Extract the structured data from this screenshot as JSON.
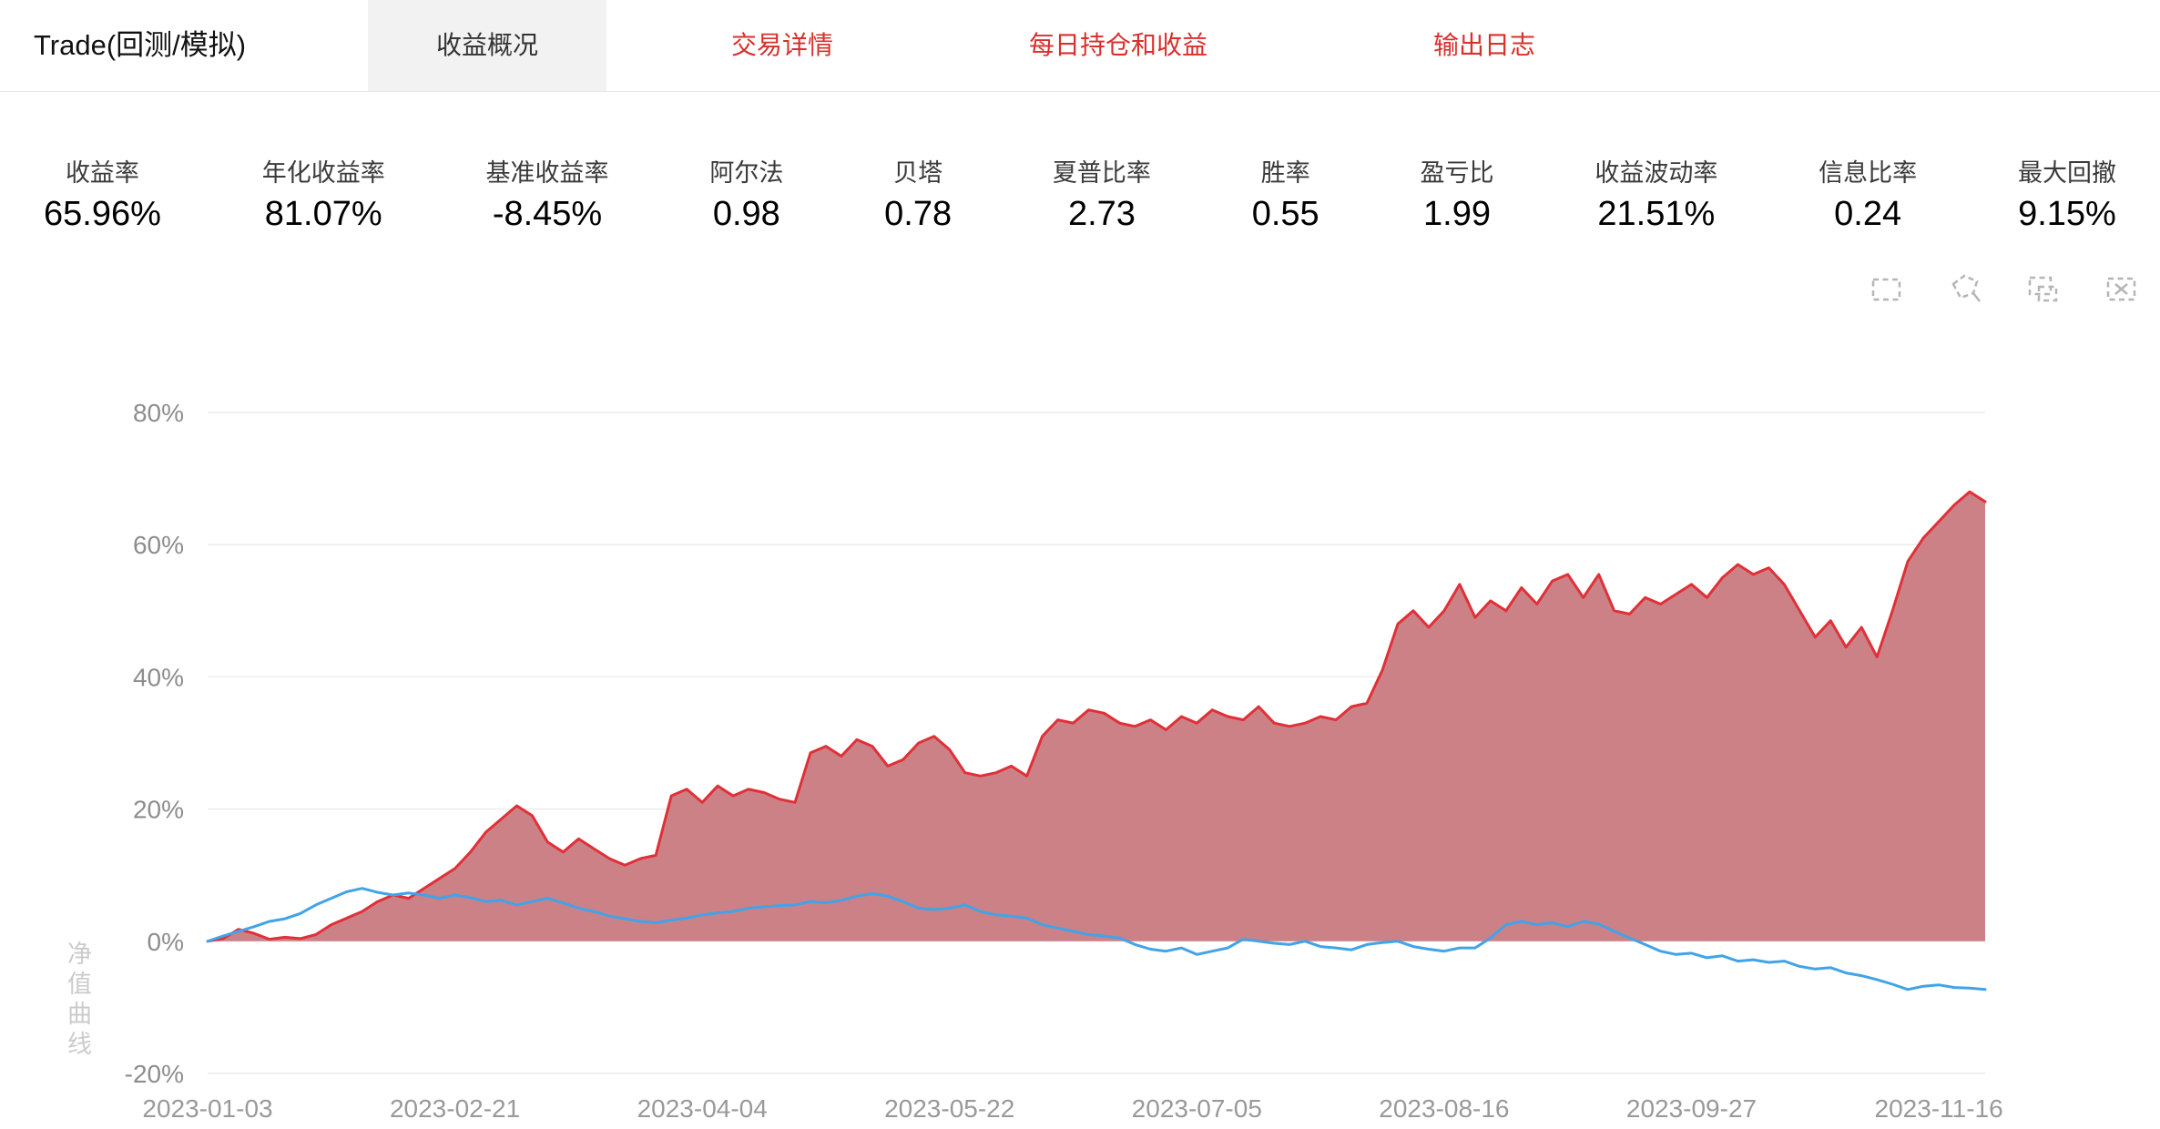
{
  "header": {
    "title": "Trade(回测/模拟)",
    "tabs": [
      {
        "label": "收益概况",
        "active": true
      },
      {
        "label": "交易详情",
        "active": false
      },
      {
        "label": "每日持仓和收益",
        "active": false
      },
      {
        "label": "输出日志",
        "active": false
      }
    ],
    "active_tab_bg": "#f2f2f2",
    "inactive_tab_color": "#d9302c"
  },
  "metrics": [
    {
      "label": "收益率",
      "value": "65.96%"
    },
    {
      "label": "年化收益率",
      "value": "81.07%"
    },
    {
      "label": "基准收益率",
      "value": "-8.45%"
    },
    {
      "label": "阿尔法",
      "value": "0.98"
    },
    {
      "label": "贝塔",
      "value": "0.78"
    },
    {
      "label": "夏普比率",
      "value": "2.73"
    },
    {
      "label": "胜率",
      "value": "0.55"
    },
    {
      "label": "盈亏比",
      "value": "1.99"
    },
    {
      "label": "收益波动率",
      "value": "21.51%"
    },
    {
      "label": "信息比率",
      "value": "0.24"
    },
    {
      "label": "最大回撤",
      "value": "9.15%"
    }
  ],
  "toolbar": {
    "icons": [
      "brush-rect-select",
      "brush-polygon-select",
      "brush-keep",
      "brush-clear"
    ],
    "icon_color": "#b5b5b5"
  },
  "chart_data": {
    "type": "line",
    "title": "",
    "xlabel": "",
    "ylabel": "净值曲线",
    "ylim": [
      -20,
      80
    ],
    "grid": true,
    "legend": "none",
    "y_tick_values": [
      -20,
      0,
      20,
      40,
      60,
      80
    ],
    "y_tick_labels": [
      "-20%",
      "0%",
      "20%",
      "40%",
      "60%",
      "80%"
    ],
    "x_tick_labels": [
      "2023-01-03",
      "2023-02-21",
      "2023-04-04",
      "2023-05-22",
      "2023-07-05",
      "2023-08-16",
      "2023-09-27",
      "2023-11-16"
    ],
    "x_tick_indices": [
      0,
      16,
      32,
      48,
      64,
      80,
      96,
      112
    ],
    "n_points": 116,
    "series": [
      {
        "name": "strategy-return-area",
        "type": "area",
        "color": "#e03038",
        "fill": "#cc8186",
        "values": [
          0,
          0.4,
          1.8,
          1.2,
          0.3,
          0.6,
          0.4,
          1,
          2.5,
          3.5,
          4.5,
          6,
          7,
          6.5,
          8,
          9.5,
          11,
          13.5,
          16.5,
          18.5,
          20.5,
          19,
          15,
          13.5,
          15.5,
          14,
          12.5,
          11.5,
          12.5,
          13,
          22,
          23,
          21,
          23.5,
          22,
          23,
          22.5,
          21.5,
          21,
          28.5,
          29.5,
          28,
          30.5,
          29.5,
          26.5,
          27.5,
          30,
          31,
          29,
          25.5,
          25,
          25.5,
          26.5,
          25,
          31,
          33.5,
          33,
          35,
          34.5,
          33,
          32.5,
          33.5,
          32,
          34,
          33,
          35,
          34,
          33.5,
          35.5,
          33,
          32.5,
          33,
          34,
          33.5,
          35.5,
          36,
          41,
          48,
          50,
          47.5,
          50,
          54,
          49,
          51.5,
          50,
          53.5,
          51,
          54.5,
          55.5,
          52,
          55.5,
          50,
          49.5,
          52,
          51,
          52.5,
          54,
          52,
          55,
          57,
          55.5,
          56.5,
          54,
          50,
          46,
          48.5,
          44.5,
          47.5,
          43,
          50,
          57.5,
          61,
          63.5,
          66,
          68,
          66.5
        ]
      },
      {
        "name": "benchmark-return-line",
        "type": "line",
        "color": "#41a3e8",
        "values": [
          0,
          0.8,
          1.5,
          2.2,
          3,
          3.4,
          4.2,
          5.5,
          6.5,
          7.5,
          8,
          7.4,
          7,
          7.3,
          7,
          6.5,
          7,
          6.6,
          6,
          6.2,
          5.5,
          6,
          6.5,
          5.8,
          5,
          4.5,
          3.8,
          3.4,
          3,
          2.8,
          3.2,
          3.5,
          4,
          4.3,
          4.5,
          5,
          5.2,
          5.4,
          5.5,
          6,
          5.8,
          6.2,
          6.8,
          7.2,
          6.8,
          6,
          5,
          4.8,
          5,
          5.5,
          4.5,
          4,
          3.8,
          3.5,
          2.5,
          2,
          1.5,
          1,
          0.8,
          0.5,
          -0.5,
          -1.2,
          -1.5,
          -1,
          -2,
          -1.5,
          -1,
          0.3,
          0,
          -0.3,
          -0.5,
          0,
          -0.8,
          -1,
          -1.3,
          -0.5,
          -0.2,
          0,
          -0.8,
          -1.2,
          -1.5,
          -1,
          -1,
          0.5,
          2.5,
          3,
          2.5,
          2.8,
          2.2,
          3,
          2.6,
          1.5,
          0.5,
          -0.5,
          -1.5,
          -2,
          -1.8,
          -2.5,
          -2.2,
          -3,
          -2.8,
          -3.2,
          -3,
          -3.8,
          -4.2,
          -4,
          -4.8,
          -5.2,
          -5.8,
          -6.5,
          -7.3,
          -6.8,
          -6.6,
          -7,
          -7.1,
          -7.3
        ]
      }
    ]
  }
}
